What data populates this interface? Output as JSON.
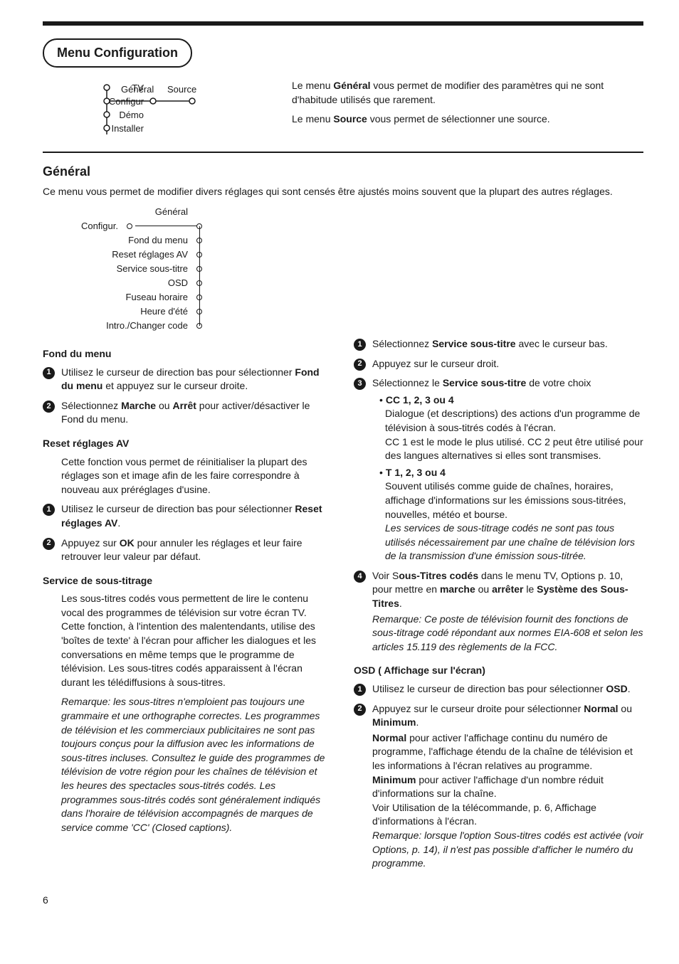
{
  "colors": {
    "text": "#1a1a1a",
    "bg": "#ffffff"
  },
  "top_title": "Menu Configuration",
  "diagram1": {
    "left_items": [
      "TV",
      "Configur",
      "Démo",
      "Installer"
    ],
    "top_items": [
      "Général",
      "Source"
    ]
  },
  "intro_right": {
    "l1a": "Le menu ",
    "l1b": "Général",
    "l1c": " vous permet de modifier des paramètres qui ne sont d'habitude utilisés que rarement.",
    "l2a": "Le menu ",
    "l2b": "Source",
    "l2c": " vous permet de sélectionner une source."
  },
  "general_title": "Général",
  "general_intro": "Ce menu vous permet de modifier divers réglages qui sont censés être ajustés moins souvent que la plupart des autres réglages.",
  "tree": {
    "header": "Général",
    "root": "Configur.",
    "items": [
      "Fond du menu",
      "Reset réglages AV",
      "Service sous-titre",
      "OSD",
      "Fuseau horaire",
      "Heure d'été",
      "Intro./Changer code"
    ]
  },
  "leftcol": {
    "fond_title": "Fond du menu",
    "fond_1a": "Utilisez le curseur de direction bas pour sélectionner ",
    "fond_1b": "Fond du menu",
    "fond_1c": " et appuyez sur le curseur droite.",
    "fond_2a": "Sélectionnez ",
    "fond_2b": "Marche",
    "fond_2c": " ou ",
    "fond_2d": "Arrêt",
    "fond_2e": " pour activer/désactiver le Fond du menu.",
    "reset_title": "Reset réglages AV",
    "reset_p": "Cette fonction vous permet de réinitialiser la plupart des réglages son et image afin de les faire correspondre à nouveau aux préréglages d'usine.",
    "reset_1a": "Utilisez le curseur de direction bas pour sélectionner ",
    "reset_1b": "Reset réglages AV",
    "reset_1c": ".",
    "reset_2a": "Appuyez sur ",
    "reset_2b": "OK",
    "reset_2c": " pour annuler les réglages et leur faire retrouver leur valeur par défaut.",
    "cc_title": "Service de sous-titrage",
    "cc_p": "Les sous-titres codés vous permettent de lire le contenu vocal des programmes de télévision sur votre écran TV. Cette fonction, à l'intention des malentendants, utilise des 'boîtes de texte' à l'écran pour afficher les dialogues et les conversations en même temps que le programme de télévision. Les sous-titres codés apparaissent à l'écran durant les télédiffusions à sous-titres.",
    "cc_remark": "Remarque: les sous-titres n'emploient pas toujours une grammaire et une orthographe correctes. Les programmes de télévision et les commerciaux publicitaires ne sont pas toujours conçus pour la diffusion avec les informations de sous-titres incluses. Consultez le guide des programmes de télévision de votre région pour les chaînes de télévision et les heures des spectacles sous-titrés codés. Les programmes sous-titrés codés sont généralement indiqués dans l'horaire de télévision accompagnés de marques de service comme 'CC' (Closed captions)."
  },
  "rightcol": {
    "s1a": "Sélectionnez ",
    "s1b": "Service sous-titre",
    "s1c": " avec le curseur bas.",
    "s2": "Appuyez sur le curseur droit.",
    "s3a": "Sélectionnez le ",
    "s3b": "Service sous-titre",
    "s3c": " de votre choix",
    "cc_opt_title": "CC 1, 2, 3 ou 4",
    "cc_opt_body": "Dialogue (et descriptions) des actions d'un programme de télévision à sous-titrés codés à l'écran.",
    "cc_opt_body2": "CC 1 est le mode le plus utilisé. CC 2 peut être utilisé pour des langues alternatives si elles sont transmises.",
    "t_opt_title": "T 1, 2, 3 ou 4",
    "t_opt_body": "Souvent utilisés comme guide de chaînes, horaires, affichage d'informations sur les émissions sous-titrées, nouvelles, météo et bourse.",
    "t_opt_note": "Les services de sous-titrage codés ne sont pas tous utilisés nécessairement par une chaîne de télévision lors de la transmission d'une émission sous-titrée.",
    "s4a": "Voir S",
    "s4b": "ous-Titres codés",
    "s4c": " dans le menu TV, Options p. 10, pour mettre en ",
    "s4d": "marche",
    "s4e": " ou ",
    "s4f": "arrêter",
    "s4g": " le ",
    "s4h": "Système des Sous-Titres",
    "s4i": ".",
    "s4_note": "Remarque: Ce poste de télévision fournit des fonctions de sous-titrage codé répondant aux normes EIA-608 et selon les articles 15.119 des règlements de la FCC.",
    "osd_title": "OSD ( Affichage sur l'écran)",
    "osd_1a": "Utilisez le curseur de direction bas pour sélectionner ",
    "osd_1b": "OSD",
    "osd_1c": ".",
    "osd_2a": "Appuyez sur le curseur droite pour sélectionner ",
    "osd_2b": "Normal",
    "osd_2c": " ou ",
    "osd_2d": "Minimum",
    "osd_2e": ".",
    "osd_normal_a": "Normal",
    "osd_normal_b": " pour activer l'affichage continu du numéro de programme, l'affichage étendu de la chaîne de télévision et les informations à l'écran relatives au programme.",
    "osd_min_a": "Minimum",
    "osd_min_b": " pour activer l'affichage d'un nombre réduit d'informations sur la chaîne.",
    "osd_ref": "Voir Utilisation de la télécommande, p. 6, Affichage d'informations à l'écran.",
    "osd_note": "Remarque: lorsque l'option Sous-titres codés est activée (voir Options, p. 14), il n'est pas possible d'afficher le numéro du programme."
  },
  "page_number": "6"
}
